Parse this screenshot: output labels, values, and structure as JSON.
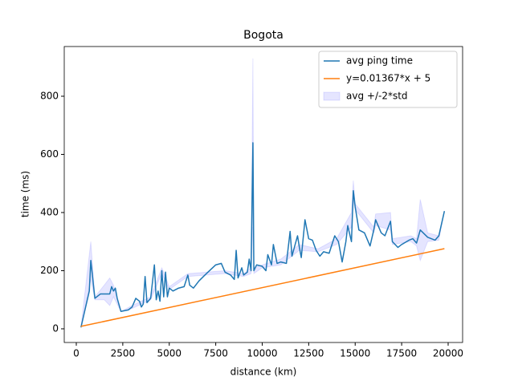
{
  "chart_data": {
    "type": "line",
    "title": "Bogota",
    "xlabel": "distance (km)",
    "ylabel": "time (ms)",
    "xlim": [
      -648,
      20778
    ],
    "ylim": [
      -47,
      971
    ],
    "xticks": [
      0,
      2500,
      5000,
      7500,
      10000,
      12500,
      15000,
      17500,
      20000
    ],
    "yticks": [
      0,
      200,
      400,
      600,
      800
    ],
    "grid": false,
    "legend": "upper right",
    "series": [
      {
        "name": "avg ping time",
        "color": "#1f77b4",
        "x": [
          250,
          700,
          780,
          1000,
          1300,
          1800,
          1900,
          2000,
          2100,
          2200,
          2400,
          2800,
          3000,
          3200,
          3400,
          3500,
          3600,
          3700,
          3800,
          4000,
          4200,
          4300,
          4400,
          4500,
          4600,
          4700,
          4800,
          4900,
          5000,
          5200,
          5500,
          5800,
          6000,
          6100,
          6300,
          6600,
          7000,
          7500,
          7800,
          8000,
          8300,
          8500,
          8600,
          8700,
          8900,
          9000,
          9200,
          9300,
          9400,
          9500,
          9550,
          9700,
          10000,
          10200,
          10300,
          10500,
          10600,
          10800,
          11000,
          11300,
          11500,
          11600,
          11900,
          12000,
          12100,
          12300,
          12500,
          12700,
          12900,
          13100,
          13300,
          13600,
          13900,
          14100,
          14300,
          14500,
          14600,
          14800,
          14900,
          15000,
          15200,
          15500,
          15800,
          16000,
          16100,
          16400,
          16600,
          16900,
          17000,
          17300,
          17500,
          17900,
          18100,
          18300,
          18500,
          18900,
          19300,
          19500,
          19800
        ],
        "values": [
          5,
          130,
          235,
          105,
          120,
          120,
          145,
          130,
          140,
          105,
          60,
          65,
          75,
          105,
          95,
          75,
          85,
          180,
          90,
          105,
          220,
          100,
          130,
          95,
          200,
          110,
          195,
          110,
          140,
          130,
          140,
          145,
          185,
          150,
          140,
          165,
          190,
          220,
          225,
          195,
          185,
          170,
          270,
          175,
          210,
          185,
          195,
          240,
          200,
          640,
          200,
          220,
          215,
          200,
          255,
          220,
          290,
          225,
          230,
          225,
          335,
          250,
          320,
          280,
          245,
          375,
          310,
          305,
          270,
          250,
          265,
          260,
          320,
          300,
          230,
          300,
          355,
          300,
          475,
          420,
          340,
          330,
          285,
          340,
          375,
          330,
          320,
          370,
          300,
          280,
          290,
          305,
          310,
          295,
          340,
          315,
          305,
          320,
          405
        ]
      },
      {
        "name": "y=0.01367*x + 5",
        "color": "#ff7f0e",
        "x": [
          250,
          19800
        ],
        "values": [
          8.42,
          275.67
        ]
      }
    ],
    "band": {
      "name": "avg +/-2*std",
      "color": "#0000ff",
      "x": [
        250,
        780,
        1000,
        1500,
        1800,
        2000,
        2400,
        3000,
        4000,
        4600,
        5000,
        6000,
        7000,
        8000,
        9000,
        9400,
        9500,
        9550,
        10000,
        11000,
        12000,
        13000,
        14000,
        14800,
        14900,
        15000,
        16000,
        16100,
        16900,
        17000,
        18000,
        18300,
        18500,
        18900,
        19500,
        19800
      ],
      "upper": [
        5,
        300,
        110,
        150,
        175,
        150,
        60,
        80,
        110,
        210,
        145,
        190,
        195,
        200,
        190,
        210,
        930,
        210,
        220,
        240,
        290,
        275,
        310,
        400,
        510,
        430,
        350,
        395,
        400,
        310,
        320,
        310,
        445,
        330,
        320,
        405
      ],
      "lower": [
        5,
        170,
        100,
        100,
        80,
        110,
        60,
        70,
        100,
        190,
        135,
        180,
        185,
        190,
        180,
        190,
        350,
        190,
        210,
        220,
        270,
        265,
        290,
        350,
        440,
        410,
        330,
        355,
        340,
        290,
        300,
        285,
        235,
        300,
        305,
        405
      ]
    }
  }
}
